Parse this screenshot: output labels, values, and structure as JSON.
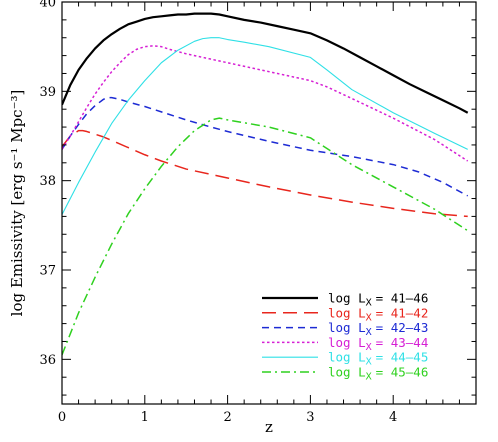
{
  "chart_data": {
    "type": "line",
    "xlabel": "z",
    "ylabel": "log Emissivity [erg s⁻¹ Mpc⁻³]",
    "xlim": [
      0,
      5
    ],
    "ylim": [
      35.5,
      40
    ],
    "x_ticks": [
      0,
      1,
      2,
      3,
      4
    ],
    "x_tick_labels": [
      "0",
      "1",
      "2",
      "3",
      "4"
    ],
    "y_ticks": [
      36,
      37,
      38,
      39,
      40
    ],
    "y_tick_labels": [
      "36",
      "37",
      "38",
      "39",
      "40"
    ],
    "grid": false,
    "legend_position": "bottom-right",
    "series": [
      {
        "name": "log L_X = 41–46",
        "legend_prefix": "log L",
        "legend_sub": "X",
        "legend_range": "= 41–46",
        "color": "#000000",
        "dash": "solid",
        "width": 2.2,
        "x": [
          0,
          0.1,
          0.2,
          0.3,
          0.4,
          0.5,
          0.6,
          0.7,
          0.8,
          0.9,
          1.0,
          1.1,
          1.2,
          1.3,
          1.4,
          1.5,
          1.6,
          1.7,
          1.8,
          1.9,
          2.0,
          2.2,
          2.4,
          2.6,
          2.8,
          3.0,
          3.2,
          3.4,
          3.6,
          3.8,
          4.0,
          4.2,
          4.4,
          4.6,
          4.8,
          4.9
        ],
        "y": [
          38.85,
          39.07,
          39.24,
          39.37,
          39.48,
          39.57,
          39.64,
          39.7,
          39.75,
          39.78,
          39.81,
          39.83,
          39.84,
          39.85,
          39.86,
          39.86,
          39.87,
          39.87,
          39.87,
          39.86,
          39.84,
          39.8,
          39.77,
          39.73,
          39.69,
          39.65,
          39.57,
          39.48,
          39.38,
          39.28,
          39.18,
          39.08,
          38.99,
          38.9,
          38.81,
          38.76
        ]
      },
      {
        "name": "log L_X = 41–42",
        "legend_prefix": "log L",
        "legend_sub": "X",
        "legend_range": "= 41–42",
        "color": "#e8261d",
        "dash": "long",
        "width": 1.5,
        "x": [
          0,
          0.1,
          0.2,
          0.25,
          0.3,
          0.4,
          0.5,
          0.6,
          0.8,
          1.0,
          1.2,
          1.5,
          1.8,
          2.0,
          2.5,
          3.0,
          3.5,
          4.0,
          4.5,
          4.9
        ],
        "y": [
          38.38,
          38.5,
          38.56,
          38.56,
          38.55,
          38.52,
          38.49,
          38.45,
          38.37,
          38.29,
          38.22,
          38.13,
          38.07,
          38.03,
          37.93,
          37.84,
          37.76,
          37.69,
          37.63,
          37.6
        ]
      },
      {
        "name": "log L_X = 42–43",
        "legend_prefix": "log L",
        "legend_sub": "X",
        "legend_range": "= 42–43",
        "color": "#1d2bd4",
        "dash": "short",
        "width": 1.5,
        "x": [
          0,
          0.1,
          0.2,
          0.3,
          0.4,
          0.5,
          0.55,
          0.6,
          0.7,
          0.8,
          1.0,
          1.2,
          1.5,
          1.8,
          2.0,
          2.5,
          3.0,
          3.5,
          4.0,
          4.3,
          4.6,
          4.9
        ],
        "y": [
          38.35,
          38.5,
          38.63,
          38.75,
          38.84,
          38.91,
          38.93,
          38.93,
          38.91,
          38.88,
          38.83,
          38.77,
          38.68,
          38.6,
          38.55,
          38.44,
          38.34,
          38.27,
          38.18,
          38.1,
          37.98,
          37.83
        ]
      },
      {
        "name": "log L_X = 43–44",
        "legend_prefix": "log L",
        "legend_sub": "X",
        "legend_range": "= 43–44",
        "color": "#d61fd4",
        "dash": "dotted",
        "width": 1.5,
        "x": [
          0,
          0.1,
          0.2,
          0.3,
          0.4,
          0.5,
          0.6,
          0.7,
          0.8,
          0.9,
          1.0,
          1.1,
          1.2,
          1.3,
          1.5,
          1.8,
          2.0,
          2.5,
          3.0,
          3.2,
          3.5,
          4.0,
          4.5,
          4.9
        ],
        "y": [
          38.35,
          38.5,
          38.66,
          38.82,
          38.97,
          39.1,
          39.22,
          39.32,
          39.41,
          39.47,
          39.5,
          39.51,
          39.5,
          39.47,
          39.42,
          39.36,
          39.32,
          39.22,
          39.12,
          39.05,
          38.92,
          38.7,
          38.46,
          38.22
        ]
      },
      {
        "name": "log L_X = 44–45",
        "legend_prefix": "log L",
        "legend_sub": "X",
        "legend_range": "= 44–45",
        "color": "#2fe0e6",
        "dash": "solid",
        "width": 1.1,
        "x": [
          0,
          0.2,
          0.4,
          0.6,
          0.8,
          1.0,
          1.2,
          1.4,
          1.6,
          1.7,
          1.8,
          1.9,
          2.0,
          2.2,
          2.5,
          3.0,
          3.2,
          3.5,
          4.0,
          4.5,
          4.9
        ],
        "y": [
          37.62,
          37.98,
          38.32,
          38.64,
          38.9,
          39.12,
          39.32,
          39.46,
          39.56,
          39.59,
          39.6,
          39.6,
          39.58,
          39.55,
          39.5,
          39.38,
          39.24,
          39.02,
          38.76,
          38.53,
          38.35
        ]
      },
      {
        "name": "log L_X = 45–46",
        "legend_prefix": "log L",
        "legend_sub": "X",
        "legend_range": "= 45–46",
        "color": "#2fd11f",
        "dash": "dashdot",
        "width": 1.5,
        "x": [
          0,
          0.2,
          0.4,
          0.6,
          0.8,
          1.0,
          1.2,
          1.4,
          1.6,
          1.8,
          1.9,
          2.0,
          2.5,
          3.0,
          3.2,
          3.5,
          4.0,
          4.5,
          4.9
        ],
        "y": [
          36.05,
          36.52,
          36.92,
          37.29,
          37.63,
          37.91,
          38.16,
          38.38,
          38.56,
          38.68,
          38.7,
          38.68,
          38.6,
          38.48,
          38.36,
          38.18,
          37.93,
          37.68,
          37.44
        ]
      }
    ]
  }
}
